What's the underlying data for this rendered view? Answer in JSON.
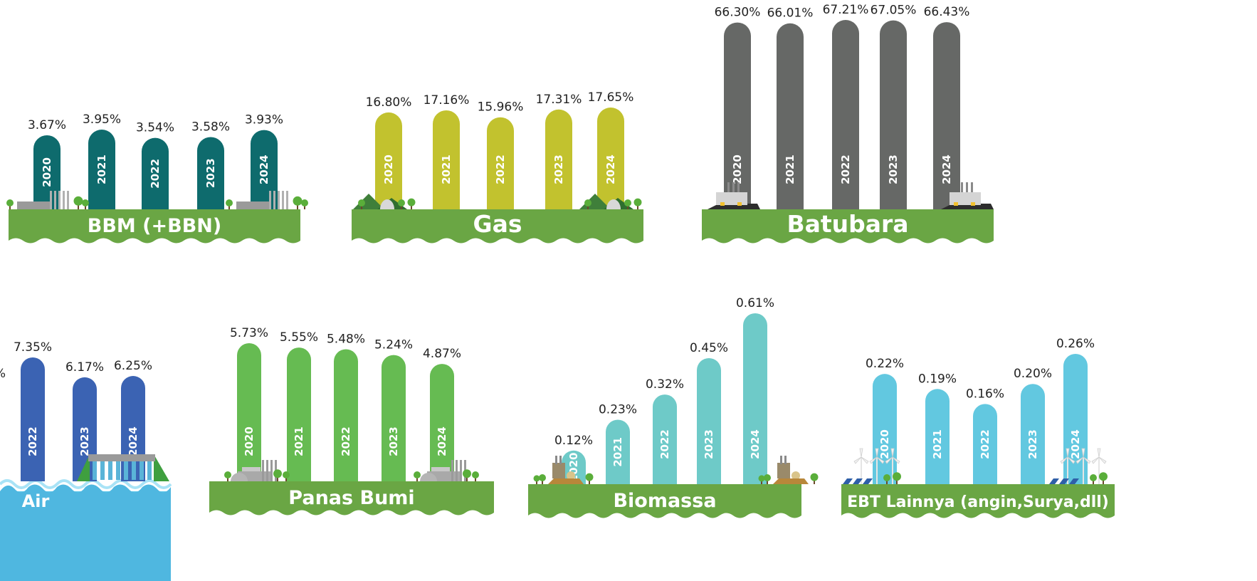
{
  "colors": {
    "grass": "#6aa644",
    "grass_dark": "#4f8a30",
    "water": "#5bc6ea",
    "factory": "#8d8d8d",
    "tree": "#5aae3a"
  },
  "chart_data": [
    {
      "type": "bar",
      "title": "BBM (+BBN)",
      "color": "#0e6b6d",
      "categories": [
        "2020",
        "2021",
        "2022",
        "2023",
        "2024"
      ],
      "values": [
        3.67,
        3.95,
        3.54,
        3.58,
        3.93
      ],
      "labels": [
        "3.67%",
        "3.95%",
        "3.54%",
        "3.58%",
        "3.93%"
      ],
      "scene": "oil-refinery"
    },
    {
      "type": "bar",
      "title": "Gas",
      "color": "#c2c22e",
      "categories": [
        "2020",
        "2021",
        "2022",
        "2023",
        "2024"
      ],
      "values": [
        16.8,
        17.16,
        15.96,
        17.31,
        17.65
      ],
      "labels": [
        "16.80%",
        "17.16%",
        "15.96%",
        "17.31%",
        "17.65%"
      ],
      "scene": "gas-plant-mountains"
    },
    {
      "type": "bar",
      "title": "Batubara",
      "color": "#666866",
      "categories": [
        "2020",
        "2021",
        "2022",
        "2023",
        "2024"
      ],
      "values": [
        66.3,
        66.01,
        67.21,
        67.05,
        66.43
      ],
      "labels": [
        "66.30%",
        "66.01%",
        "67.21%",
        "67.05%",
        "66.43%"
      ],
      "scene": "coal-plant"
    },
    {
      "type": "bar",
      "title": "Air",
      "color": "#3b63b3",
      "categories": [
        "2022",
        "2023",
        "2024"
      ],
      "values": [
        7.35,
        6.17,
        6.25
      ],
      "labels": [
        "7.35%",
        "6.17%",
        "6.25%"
      ],
      "partial_label": "%",
      "scene": "hydro-dam"
    },
    {
      "type": "bar",
      "title": "Panas Bumi",
      "color": "#66bb52",
      "categories": [
        "2020",
        "2021",
        "2022",
        "2023",
        "2024"
      ],
      "values": [
        5.73,
        5.55,
        5.48,
        5.24,
        4.87
      ],
      "labels": [
        "5.73%",
        "5.55%",
        "5.48%",
        "5.24%",
        "4.87%"
      ],
      "scene": "geothermal-plant"
    },
    {
      "type": "bar",
      "title": "Biomassa",
      "color": "#6ecac8",
      "categories": [
        "2020",
        "2021",
        "2022",
        "2023",
        "2024"
      ],
      "values": [
        0.12,
        0.23,
        0.32,
        0.45,
        0.61
      ],
      "labels": [
        "0.12%",
        "0.23%",
        "0.32%",
        "0.45%",
        "0.61%"
      ],
      "scene": "biomass-plant"
    },
    {
      "type": "bar",
      "title": "EBT Lainnya (angin,Surya,dll)",
      "color": "#62c8e0",
      "categories": [
        "2020",
        "2021",
        "2022",
        "2023",
        "2024"
      ],
      "values": [
        0.22,
        0.19,
        0.16,
        0.2,
        0.26
      ],
      "labels": [
        "0.22%",
        "0.19%",
        "0.16%",
        "0.20%",
        "0.26%"
      ],
      "scene": "wind-solar"
    }
  ]
}
